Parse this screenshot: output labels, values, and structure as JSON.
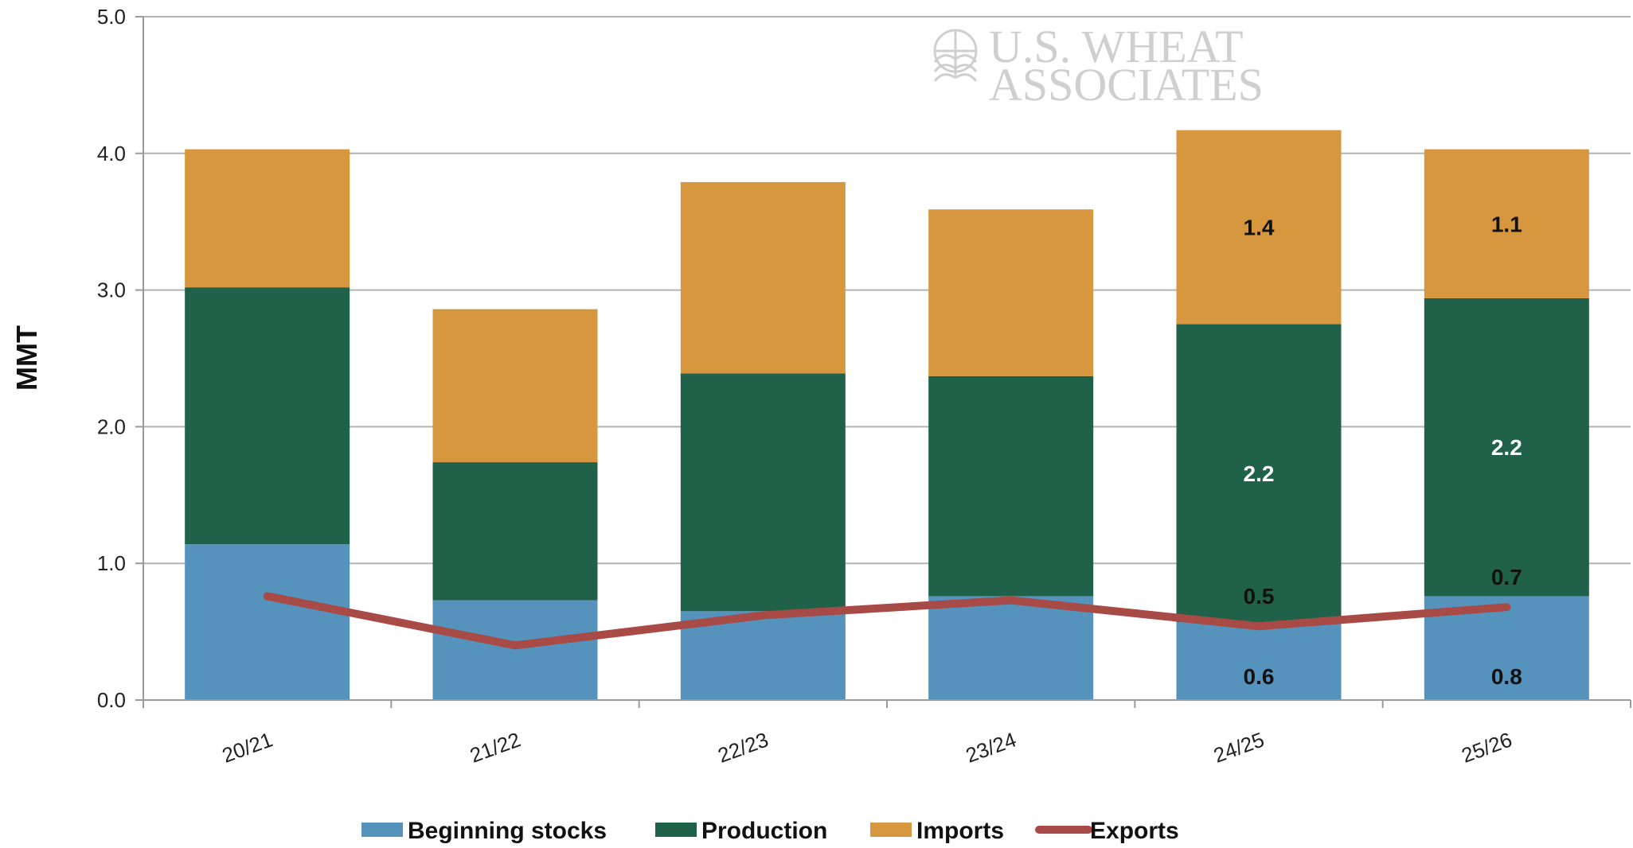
{
  "chart_data": {
    "type": "bar",
    "stacked": true,
    "ylabel": "MMT",
    "xlabel": "",
    "ylim": [
      0,
      5
    ],
    "yticks": [
      "0.0",
      "1.0",
      "2.0",
      "3.0",
      "4.0",
      "5.0"
    ],
    "grid": "horizontal",
    "legend_position": "bottom",
    "categories": [
      "20/21",
      "21/22",
      "22/23",
      "23/24",
      "24/25",
      "25/26"
    ],
    "series": [
      {
        "name": "Beginning stocks",
        "kind": "bar",
        "color": "#5592bc",
        "label_color": "#111111",
        "values": [
          1.14,
          0.73,
          0.65,
          0.76,
          0.57,
          0.76
        ],
        "data_labels": [
          "",
          "",
          "",
          "",
          "0.6",
          "0.8"
        ]
      },
      {
        "name": "Production",
        "kind": "bar",
        "color": "#20614a",
        "label_color": "#ffffff",
        "values": [
          1.88,
          1.01,
          1.74,
          1.61,
          2.18,
          2.18
        ],
        "data_labels": [
          "",
          "",
          "",
          "",
          "2.2",
          "2.2"
        ]
      },
      {
        "name": "Imports",
        "kind": "bar",
        "color": "#d6973e",
        "label_color": "#111111",
        "values": [
          1.01,
          1.12,
          1.4,
          1.22,
          1.42,
          1.09
        ],
        "data_labels": [
          "",
          "",
          "",
          "",
          "1.4",
          "1.1"
        ]
      },
      {
        "name": "Exports",
        "kind": "line",
        "color": "#a84a45",
        "label_color": "#111111",
        "values": [
          0.76,
          0.4,
          0.62,
          0.73,
          0.54,
          0.68
        ],
        "data_labels": [
          "",
          "",
          "",
          "",
          "0.5",
          "0.7"
        ]
      }
    ],
    "watermark": {
      "line1": "U.S. WHEAT",
      "line2": "ASSOCIATES"
    }
  }
}
